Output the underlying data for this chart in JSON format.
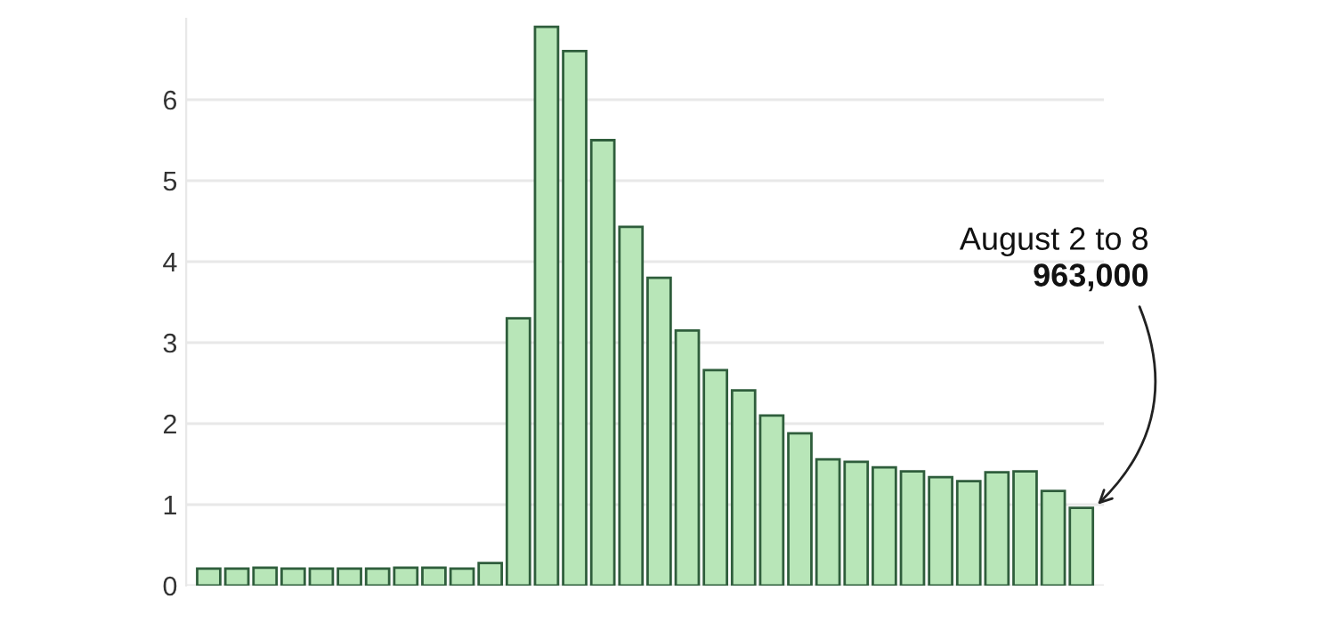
{
  "chart_data": {
    "type": "bar",
    "categories": [
      null,
      null,
      null,
      null,
      null,
      null,
      null,
      null,
      null,
      null,
      null,
      null,
      null,
      null,
      null,
      null,
      null,
      null,
      null,
      null,
      null,
      null,
      null,
      null,
      null,
      null,
      null,
      null,
      null,
      null,
      null,
      null
    ],
    "values": [
      0.21,
      0.21,
      0.22,
      0.21,
      0.21,
      0.21,
      0.21,
      0.22,
      0.22,
      0.21,
      0.28,
      3.3,
      6.9,
      6.6,
      5.5,
      4.43,
      3.8,
      3.15,
      2.66,
      2.41,
      2.1,
      1.88,
      1.56,
      1.53,
      1.46,
      1.41,
      1.34,
      1.29,
      1.4,
      1.41,
      1.17,
      0.96
    ],
    "color": "#b8e6b8",
    "ylim": [
      0,
      7
    ],
    "yticks": [
      0,
      1,
      2,
      3,
      4,
      5,
      6
    ],
    "grid": "y",
    "legend": false,
    "annotations": [
      "August 2 to 8",
      "963,000"
    ]
  }
}
